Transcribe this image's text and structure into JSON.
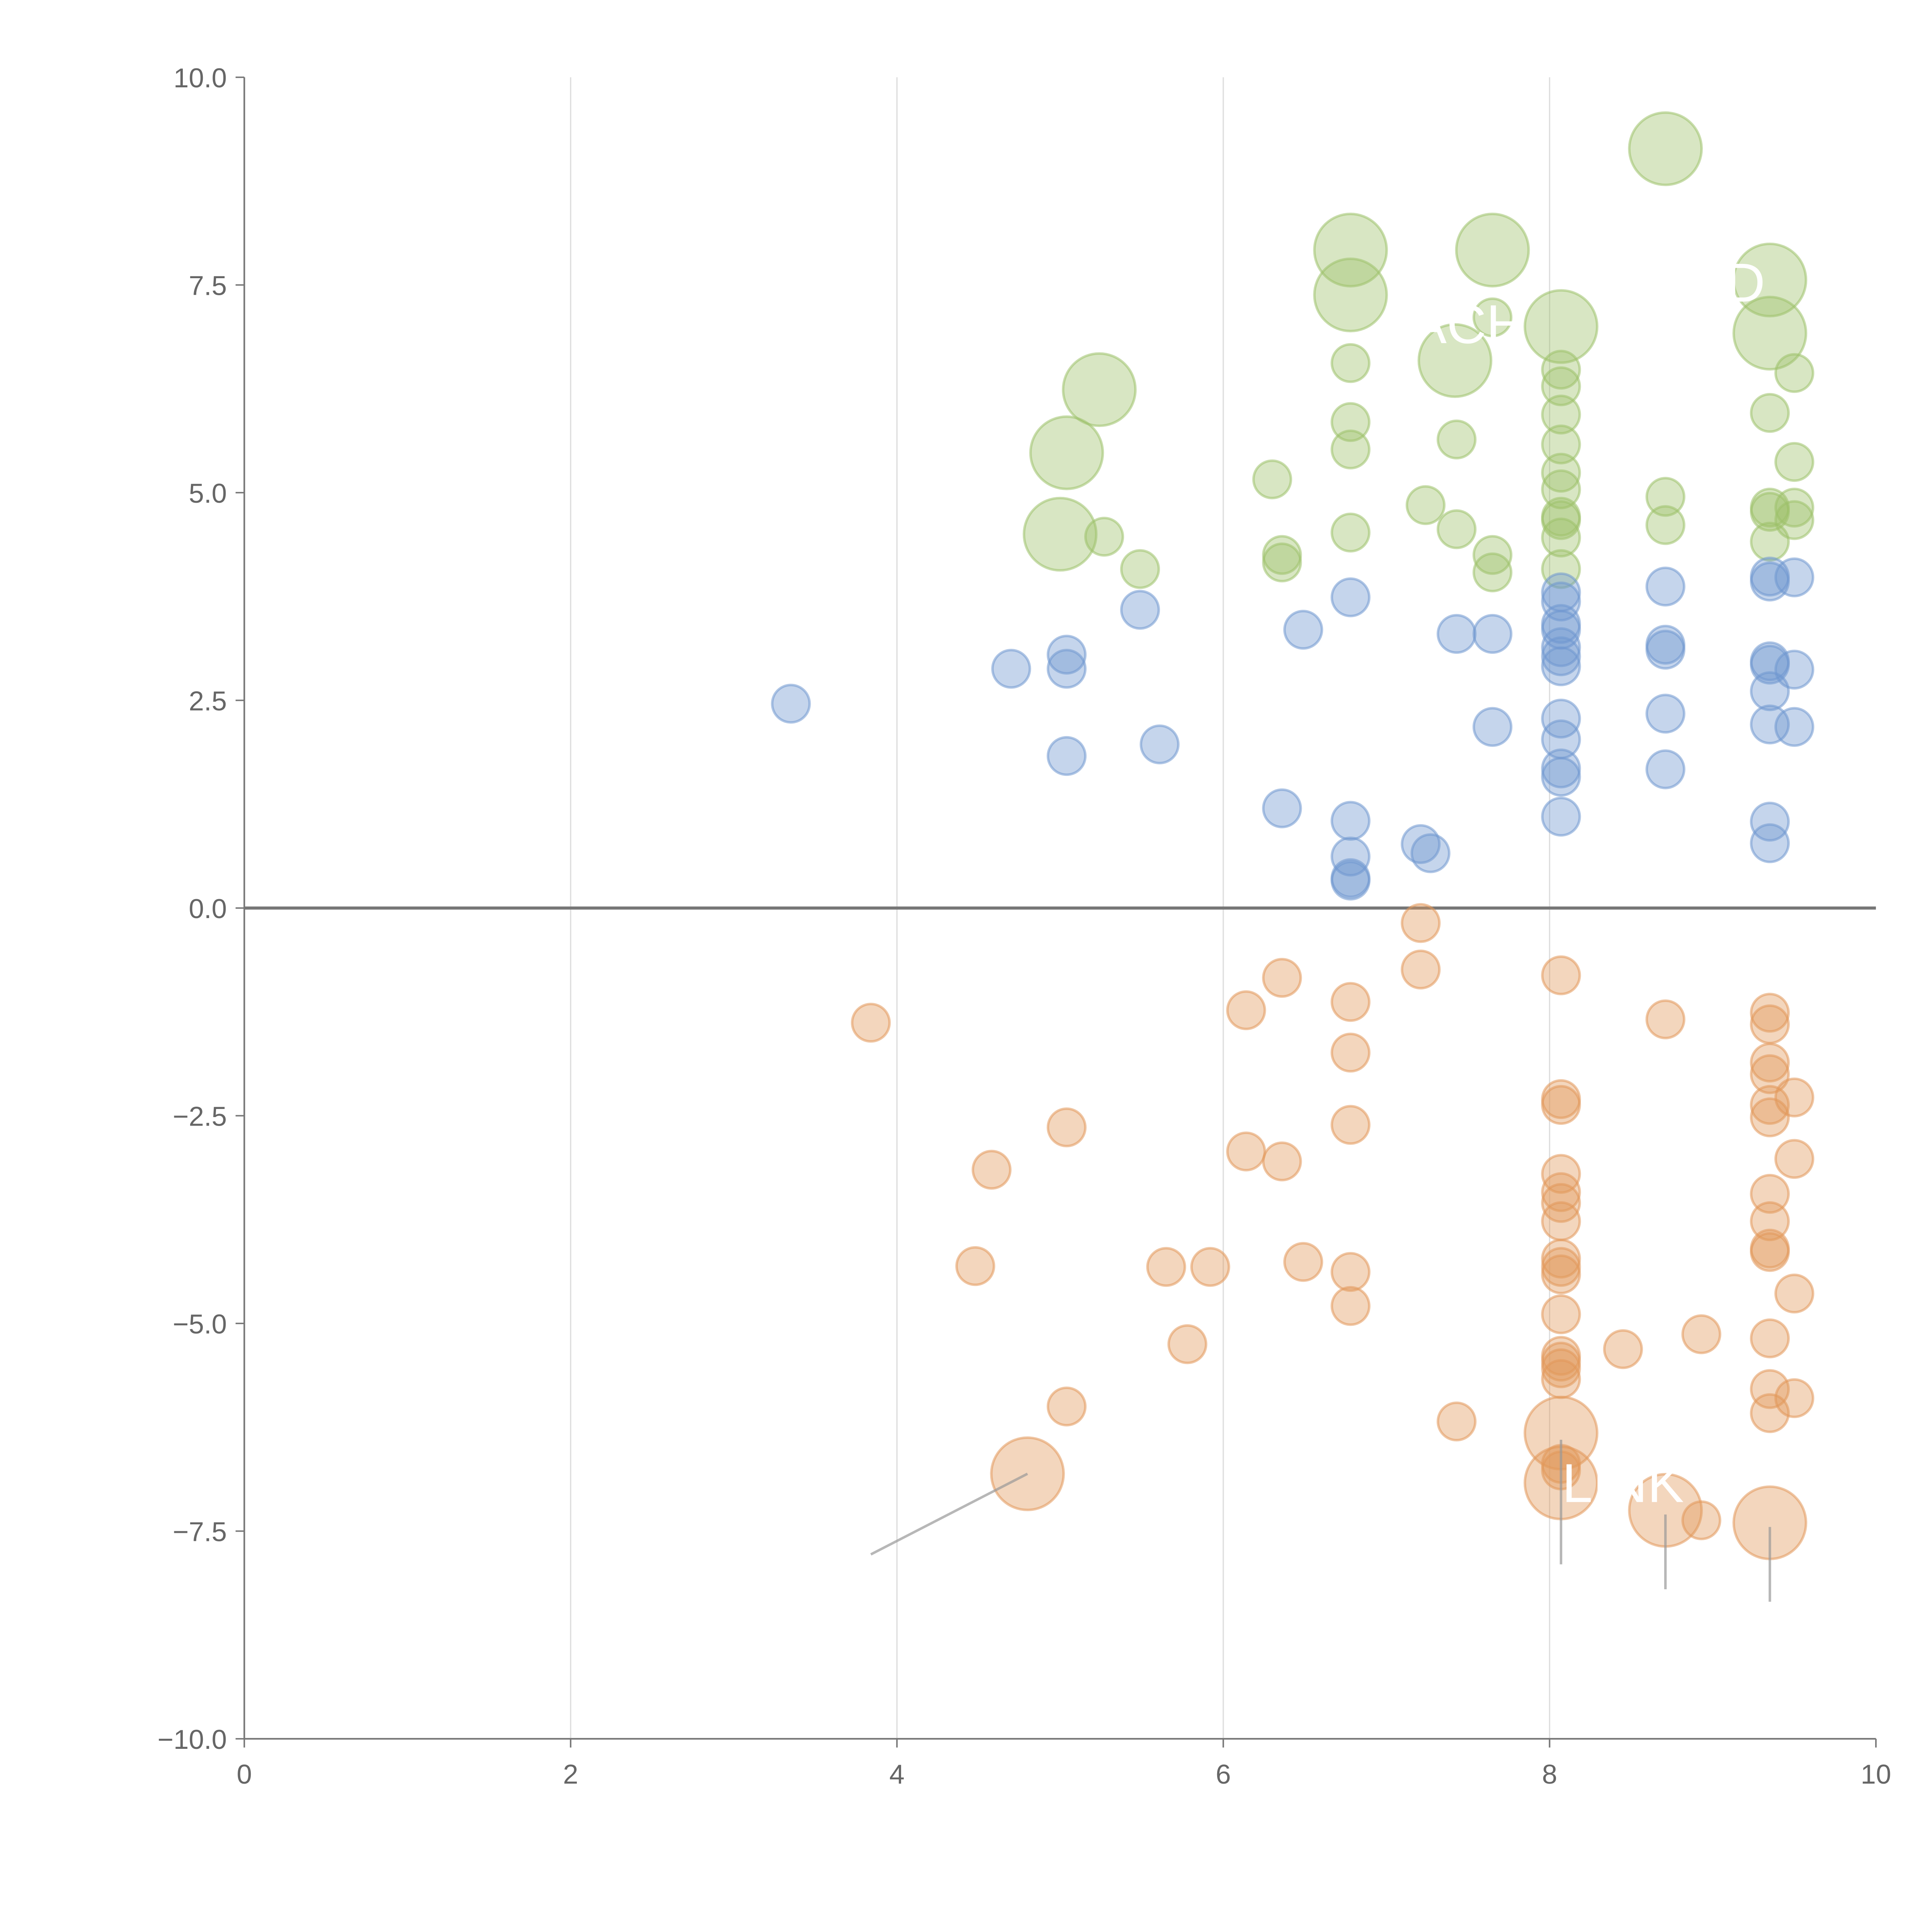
{
  "chart_data": {
    "type": "scatter",
    "title": "",
    "xlabel": "",
    "ylabel": "",
    "xlim": [
      0,
      10
    ],
    "ylim": [
      -10,
      10
    ],
    "xticks": [
      "0",
      "2",
      "4",
      "6",
      "8",
      "10"
    ],
    "yticks": [
      "10.0",
      "7.5",
      "5.0",
      "2.5",
      "0.0",
      "−2.5",
      "−5.0",
      "−7.5",
      "−10.0"
    ],
    "grid": "vertical",
    "series": [
      {
        "name": "green",
        "color": "#9dc16a",
        "points": [
          [
            6.78,
            7.92,
            3
          ],
          [
            7.65,
            7.92,
            3
          ],
          [
            8.71,
            9.14,
            3
          ],
          [
            6.78,
            7.38,
            3
          ],
          [
            8.07,
            7.0,
            3
          ],
          [
            9.35,
            7.56,
            3
          ],
          [
            9.35,
            6.92,
            3
          ],
          [
            7.42,
            6.59,
            3
          ],
          [
            5.24,
            6.24,
            3
          ],
          [
            5.04,
            5.48,
            3
          ],
          [
            5.0,
            4.5,
            3
          ],
          [
            6.78,
            6.56,
            1
          ],
          [
            7.65,
            7.11,
            1
          ],
          [
            6.78,
            5.85,
            1
          ],
          [
            6.78,
            5.52,
            1
          ],
          [
            7.43,
            5.64,
            1
          ],
          [
            6.3,
            5.16,
            1
          ],
          [
            7.24,
            4.85,
            1
          ],
          [
            7.43,
            4.56,
            1
          ],
          [
            6.78,
            4.52,
            1
          ],
          [
            6.36,
            4.25,
            1
          ],
          [
            6.36,
            4.16,
            1
          ],
          [
            5.27,
            4.47,
            1
          ],
          [
            5.49,
            4.08,
            1
          ],
          [
            7.65,
            4.25,
            1
          ],
          [
            7.65,
            4.04,
            1
          ],
          [
            8.07,
            6.48,
            1
          ],
          [
            8.07,
            6.28,
            1
          ],
          [
            8.07,
            5.94,
            1
          ],
          [
            8.07,
            5.58,
            1
          ],
          [
            8.07,
            5.24,
            1
          ],
          [
            8.07,
            5.04,
            1
          ],
          [
            8.07,
            4.71,
            1
          ],
          [
            8.07,
            4.67,
            1
          ],
          [
            8.07,
            4.46,
            1
          ],
          [
            8.07,
            4.08,
            1
          ],
          [
            8.71,
            4.95,
            1
          ],
          [
            8.71,
            4.61,
            1
          ],
          [
            9.35,
            5.96,
            1
          ],
          [
            9.5,
            6.44,
            1
          ],
          [
            9.5,
            5.37,
            1
          ],
          [
            9.35,
            4.82,
            1
          ],
          [
            9.35,
            4.77,
            1
          ],
          [
            9.35,
            4.41,
            1
          ],
          [
            9.5,
            4.82,
            1
          ],
          [
            9.5,
            4.67,
            1
          ]
        ]
      },
      {
        "name": "blue",
        "color": "#6f97cf",
        "points": [
          [
            3.35,
            2.46,
            1
          ],
          [
            4.7,
            2.88,
            1
          ],
          [
            5.04,
            3.05,
            1
          ],
          [
            5.04,
            2.88,
            1
          ],
          [
            5.04,
            1.83,
            1
          ],
          [
            5.49,
            3.59,
            1
          ],
          [
            5.61,
            1.97,
            1
          ],
          [
            6.36,
            1.2,
            1
          ],
          [
            6.49,
            3.35,
            1
          ],
          [
            6.78,
            3.74,
            1
          ],
          [
            6.78,
            1.05,
            1
          ],
          [
            6.78,
            0.62,
            1
          ],
          [
            6.78,
            0.36,
            1
          ],
          [
            6.78,
            0.33,
            1
          ],
          [
            7.21,
            0.77,
            1
          ],
          [
            7.27,
            0.66,
            1
          ],
          [
            7.43,
            3.3,
            1
          ],
          [
            7.65,
            3.3,
            1
          ],
          [
            7.65,
            2.18,
            1
          ],
          [
            8.07,
            3.8,
            1
          ],
          [
            8.07,
            3.69,
            1
          ],
          [
            8.07,
            3.42,
            1
          ],
          [
            8.07,
            3.35,
            1
          ],
          [
            8.07,
            3.14,
            1
          ],
          [
            8.07,
            3.03,
            1
          ],
          [
            8.07,
            2.91,
            1
          ],
          [
            8.07,
            2.28,
            1
          ],
          [
            8.07,
            2.03,
            1
          ],
          [
            8.07,
            1.68,
            1
          ],
          [
            8.07,
            1.58,
            1
          ],
          [
            8.07,
            1.1,
            1
          ],
          [
            8.71,
            3.87,
            1
          ],
          [
            8.71,
            3.17,
            1
          ],
          [
            8.71,
            3.11,
            1
          ],
          [
            8.71,
            2.34,
            1
          ],
          [
            8.71,
            1.67,
            1
          ],
          [
            9.35,
            3.99,
            1
          ],
          [
            9.35,
            3.93,
            1
          ],
          [
            9.35,
            2.97,
            1
          ],
          [
            9.35,
            2.93,
            1
          ],
          [
            9.35,
            2.61,
            1
          ],
          [
            9.35,
            2.21,
            1
          ],
          [
            9.35,
            1.04,
            1
          ],
          [
            9.35,
            0.78,
            1
          ],
          [
            9.5,
            3.98,
            1
          ],
          [
            9.5,
            2.87,
            1
          ],
          [
            9.5,
            2.18,
            1
          ]
        ]
      },
      {
        "name": "orange",
        "color": "#e1985a",
        "points": [
          [
            3.84,
            -1.38,
            1
          ],
          [
            4.48,
            -4.31,
            1
          ],
          [
            4.58,
            -3.15,
            1
          ],
          [
            5.04,
            -2.64,
            1
          ],
          [
            5.04,
            -6.0,
            1
          ],
          [
            4.8,
            -6.81,
            3
          ],
          [
            5.65,
            -4.32,
            1
          ],
          [
            5.78,
            -5.25,
            1
          ],
          [
            5.92,
            -4.32,
            1
          ],
          [
            6.14,
            -1.23,
            1
          ],
          [
            6.14,
            -2.93,
            1
          ],
          [
            6.36,
            -0.84,
            1
          ],
          [
            6.36,
            -3.05,
            1
          ],
          [
            6.49,
            -4.26,
            1
          ],
          [
            6.78,
            -1.13,
            1
          ],
          [
            6.78,
            -1.74,
            1
          ],
          [
            6.78,
            -2.61,
            1
          ],
          [
            6.78,
            -4.38,
            1
          ],
          [
            6.78,
            -4.79,
            1
          ],
          [
            7.21,
            -0.18,
            1
          ],
          [
            7.21,
            -0.74,
            1
          ],
          [
            7.43,
            -6.18,
            1
          ],
          [
            8.07,
            -0.81,
            1
          ],
          [
            8.07,
            -2.3,
            1
          ],
          [
            8.07,
            -2.37,
            1
          ],
          [
            8.07,
            -3.2,
            1
          ],
          [
            8.07,
            -3.42,
            1
          ],
          [
            8.07,
            -3.55,
            1
          ],
          [
            8.07,
            -3.77,
            1
          ],
          [
            8.07,
            -4.22,
            1
          ],
          [
            8.07,
            -4.32,
            1
          ],
          [
            8.07,
            -4.41,
            1
          ],
          [
            8.07,
            -4.89,
            1
          ],
          [
            8.07,
            -5.39,
            1
          ],
          [
            8.07,
            -5.46,
            1
          ],
          [
            8.07,
            -5.54,
            1
          ],
          [
            8.07,
            -5.67,
            1
          ],
          [
            8.07,
            -6.32,
            3
          ],
          [
            8.07,
            -6.69,
            1
          ],
          [
            8.07,
            -6.77,
            1
          ],
          [
            8.07,
            -6.92,
            3
          ],
          [
            8.45,
            -5.31,
            1
          ],
          [
            8.71,
            -1.34,
            1
          ],
          [
            8.71,
            -7.25,
            3
          ],
          [
            8.93,
            -5.13,
            1
          ],
          [
            8.93,
            -7.37,
            1
          ],
          [
            9.35,
            -1.26,
            1
          ],
          [
            9.35,
            -1.4,
            1
          ],
          [
            9.35,
            -1.86,
            1
          ],
          [
            9.35,
            -2.0,
            1
          ],
          [
            9.35,
            -2.37,
            1
          ],
          [
            9.35,
            -2.52,
            1
          ],
          [
            9.35,
            -3.44,
            1
          ],
          [
            9.35,
            -3.77,
            1
          ],
          [
            9.35,
            -4.1,
            1
          ],
          [
            9.35,
            -4.14,
            1
          ],
          [
            9.35,
            -5.18,
            1
          ],
          [
            9.35,
            -5.79,
            1
          ],
          [
            9.35,
            -6.08,
            1
          ],
          [
            9.35,
            -7.4,
            3
          ],
          [
            9.5,
            -2.28,
            1
          ],
          [
            9.5,
            -3.02,
            1
          ],
          [
            9.5,
            -4.64,
            1
          ],
          [
            9.5,
            -5.9,
            1
          ]
        ]
      }
    ],
    "annotations": [
      {
        "text": "ACH",
        "x": 7.5,
        "y": 6.8,
        "color": "#ffffff"
      },
      {
        "text": "D",
        "x": 9.2,
        "y": 7.3,
        "color": "#ffffff"
      },
      {
        "text": "LINK",
        "x": 8.45,
        "y": -7.15,
        "color": "#ffffff"
      }
    ],
    "leader_lines": [
      {
        "from": [
          3.84,
          -7.78
        ],
        "to": [
          4.8,
          -6.81
        ]
      },
      {
        "from": [
          8.07,
          -6.4
        ],
        "to": [
          8.07,
          -7.9
        ]
      },
      {
        "from": [
          8.71,
          -7.3
        ],
        "to": [
          8.71,
          -8.2
        ]
      },
      {
        "from": [
          9.35,
          -7.45
        ],
        "to": [
          9.35,
          -8.35
        ]
      }
    ]
  }
}
